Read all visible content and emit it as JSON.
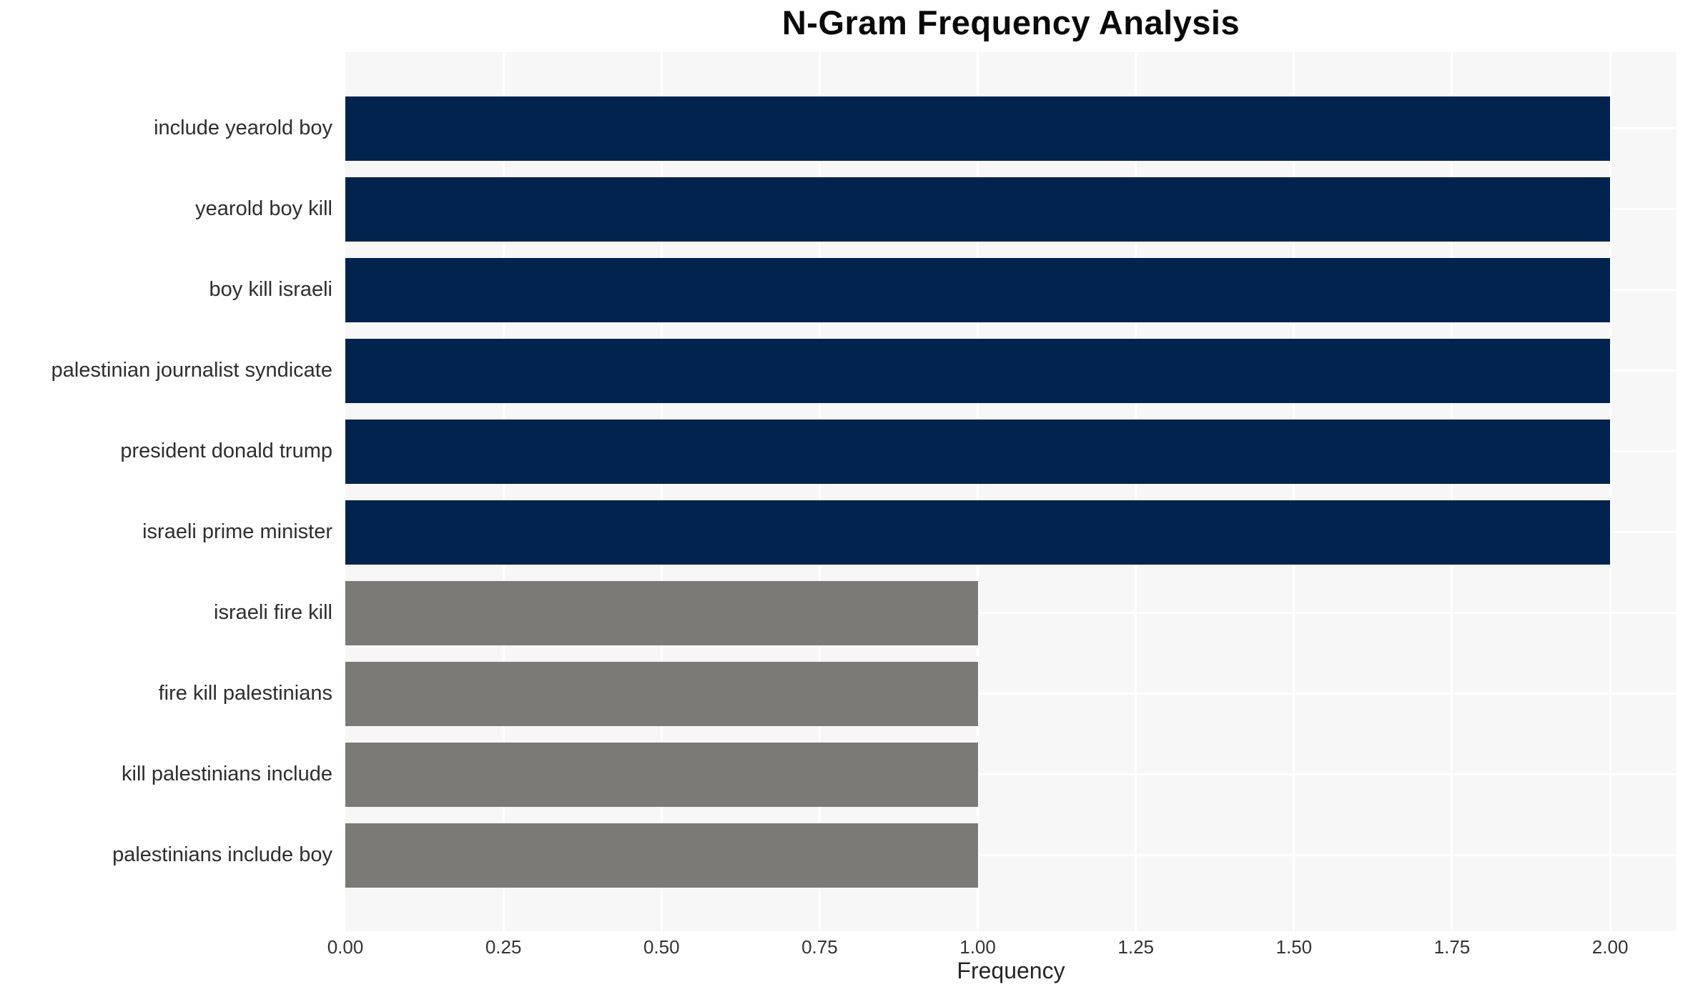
{
  "title": "N-Gram Frequency Analysis",
  "chart_data": {
    "type": "bar",
    "orientation": "horizontal",
    "title": "N-Gram Frequency Analysis",
    "xlabel": "Frequency",
    "ylabel": "",
    "categories": [
      "include yearold boy",
      "yearold boy kill",
      "boy kill israeli",
      "palestinian journalist syndicate",
      "president donald trump",
      "israeli prime minister",
      "israeli fire kill",
      "fire kill palestinians",
      "kill palestinians include",
      "palestinians include boy"
    ],
    "values": [
      2,
      2,
      2,
      2,
      2,
      2,
      1,
      1,
      1,
      1
    ],
    "bar_colors": [
      "#02234d",
      "#02234d",
      "#02234d",
      "#02234d",
      "#02234d",
      "#02234d",
      "#7c7a76",
      "#7c7a76",
      "#7c7a76",
      "#7c7a76"
    ],
    "xlim": [
      0,
      2.105
    ],
    "xticks": [
      {
        "value": 0.0,
        "label": "0.00"
      },
      {
        "value": 0.25,
        "label": "0.25"
      },
      {
        "value": 0.5,
        "label": "0.50"
      },
      {
        "value": 0.75,
        "label": "0.75"
      },
      {
        "value": 1.0,
        "label": "1.00"
      },
      {
        "value": 1.25,
        "label": "1.25"
      },
      {
        "value": 1.5,
        "label": "1.50"
      },
      {
        "value": 1.75,
        "label": "1.75"
      },
      {
        "value": 2.0,
        "label": "2.00"
      }
    ],
    "grid": "on",
    "legend_position": "none",
    "colors": {
      "panel_background": "#f7f7f7",
      "figure_background": "#ffffff",
      "gridline": "#ffffff",
      "bar_frequent": "#02234d",
      "bar_infrequent": "#7c7a76",
      "category_text": "#2e2e2e",
      "tick_text": "#333333",
      "title_text": "#0a0a0a"
    }
  }
}
